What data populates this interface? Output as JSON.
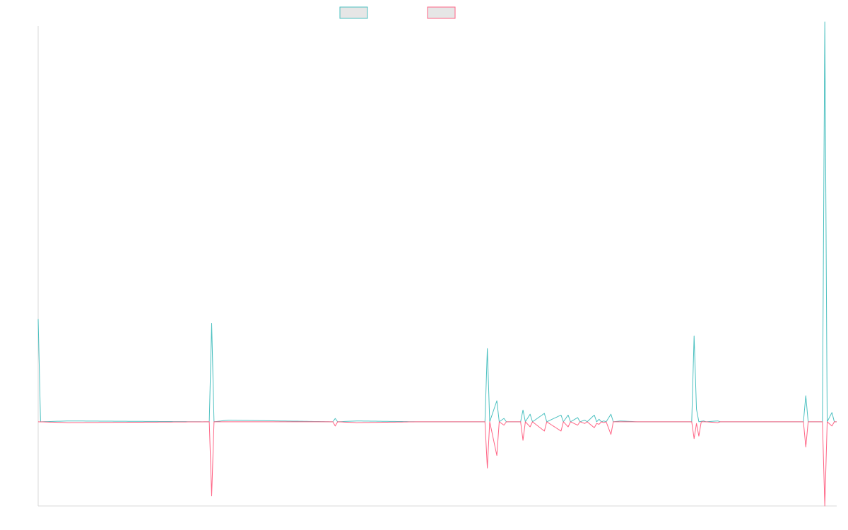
{
  "chart_data": {
    "type": "line",
    "title": "",
    "xlabel": "",
    "ylabel": "",
    "grid": false,
    "legend_position": "top-center",
    "baseline": 0,
    "ylim": [
      -100,
      470
    ],
    "x": [
      0,
      1,
      2,
      3,
      4,
      5,
      6,
      7,
      8,
      9,
      10,
      11,
      12,
      13,
      14,
      15,
      16,
      17,
      18,
      19,
      20,
      21,
      22,
      23,
      24,
      25,
      26,
      27,
      28,
      29,
      30,
      31,
      32,
      33,
      34,
      35,
      36,
      37,
      38,
      39,
      40,
      41,
      42,
      43,
      44,
      45,
      46,
      47,
      48,
      49,
      50,
      51,
      52,
      53,
      54,
      55,
      56,
      57,
      58,
      59,
      60,
      61,
      62,
      63,
      64,
      65,
      66,
      67,
      68,
      69,
      70,
      71,
      72,
      73,
      74,
      75,
      76,
      77,
      78,
      79,
      80,
      81,
      82,
      83,
      84,
      85,
      86,
      87,
      88,
      89,
      90,
      91,
      92,
      93,
      94,
      95,
      96,
      97,
      98,
      99,
      100,
      101,
      102,
      103,
      104,
      105,
      106,
      107,
      108,
      109,
      110,
      111,
      112,
      113,
      114,
      115,
      116,
      117,
      118,
      119,
      120,
      121,
      122,
      123,
      124,
      125,
      126,
      127,
      128,
      129,
      130,
      131,
      132,
      133,
      134,
      135,
      136,
      137,
      138,
      139,
      140,
      141,
      142,
      143,
      144,
      145,
      146,
      147,
      148,
      149,
      150,
      151,
      152,
      153,
      154,
      155,
      156,
      157,
      158,
      159,
      160,
      161,
      162,
      163,
      164,
      165,
      166,
      167,
      168,
      169,
      170,
      171,
      172,
      173,
      174,
      175,
      176,
      177,
      178,
      179,
      180,
      181,
      182,
      183,
      184,
      185,
      186,
      187,
      188,
      189,
      190,
      191,
      192,
      193,
      194,
      195,
      196,
      197,
      198,
      199,
      200,
      201,
      202,
      203,
      204,
      205,
      206,
      207,
      208,
      209,
      210,
      211,
      212,
      213,
      214,
      215,
      216,
      217,
      218,
      219,
      220,
      221,
      222,
      223,
      224,
      225,
      226,
      227,
      228,
      229,
      230,
      231,
      232,
      233,
      234,
      235,
      236,
      237,
      238,
      239,
      240,
      241,
      242,
      243,
      244,
      245,
      246,
      247,
      248,
      249,
      250,
      251,
      252,
      253,
      254,
      255,
      256,
      257,
      258,
      259,
      260,
      261,
      262,
      263,
      264,
      265,
      266,
      267,
      268,
      269,
      270,
      271,
      272,
      273,
      274,
      275,
      276,
      277,
      278,
      279,
      280,
      281,
      282,
      283,
      284,
      285,
      286,
      287,
      288,
      289,
      290,
      291,
      292,
      293,
      294,
      295,
      296,
      297,
      298,
      299,
      300,
      301,
      302,
      303,
      304,
      305,
      306,
      307,
      308,
      309,
      310,
      311,
      312,
      313,
      314,
      315,
      316,
      317,
      318,
      319,
      320,
      321,
      322,
      323,
      324,
      325,
      326,
      327,
      328,
      329,
      330,
      331,
      332,
      333,
      334,
      335,
      336
    ],
    "series": [
      {
        "name": "",
        "color": "#4bc0c0",
        "points": [
          [
            0,
            122
          ],
          [
            1,
            0
          ],
          [
            13,
            1
          ],
          [
            72,
            0
          ],
          [
            73,
            117
          ],
          [
            74,
            0
          ],
          [
            80,
            2
          ],
          [
            124,
            0
          ],
          [
            125,
            4
          ],
          [
            126,
            0
          ],
          [
            134,
            1
          ],
          [
            160,
            0
          ],
          [
            188,
            0
          ],
          [
            189,
            87
          ],
          [
            190,
            0
          ],
          [
            193,
            25
          ],
          [
            194,
            0
          ],
          [
            196,
            4
          ],
          [
            197,
            0
          ],
          [
            203,
            0
          ],
          [
            204,
            14
          ],
          [
            205,
            0
          ],
          [
            207,
            9
          ],
          [
            208,
            0
          ],
          [
            213,
            10
          ],
          [
            214,
            0
          ],
          [
            220,
            8
          ],
          [
            221,
            0
          ],
          [
            223,
            8
          ],
          [
            224,
            0
          ],
          [
            227,
            5
          ],
          [
            228,
            0
          ],
          [
            230,
            2
          ],
          [
            231,
            0
          ],
          [
            234,
            8
          ],
          [
            235,
            0
          ],
          [
            236,
            3
          ],
          [
            237,
            0
          ],
          [
            238,
            1
          ],
          [
            239,
            0
          ],
          [
            241,
            9
          ],
          [
            242,
            0
          ],
          [
            245,
            1
          ],
          [
            252,
            0
          ],
          [
            256,
            0
          ],
          [
            258,
            0
          ],
          [
            275,
            0
          ],
          [
            276,
            102
          ],
          [
            277,
            15
          ],
          [
            278,
            0
          ],
          [
            280,
            1
          ],
          [
            281,
            0
          ],
          [
            286,
            1
          ],
          [
            287,
            0
          ],
          [
            295,
            0
          ],
          [
            322,
            0
          ],
          [
            323,
            31
          ],
          [
            324,
            0
          ],
          [
            330,
            0
          ],
          [
            331,
            475
          ],
          [
            332,
            0
          ],
          [
            334,
            11
          ],
          [
            335,
            0
          ],
          [
            336,
            0
          ]
        ]
      },
      {
        "name": "",
        "color": "#ff6384",
        "points": [
          [
            0,
            0
          ],
          [
            13,
            -1
          ],
          [
            72,
            0
          ],
          [
            73,
            -88
          ],
          [
            74,
            0
          ],
          [
            124,
            0
          ],
          [
            125,
            -5
          ],
          [
            126,
            0
          ],
          [
            134,
            -1
          ],
          [
            160,
            0
          ],
          [
            188,
            0
          ],
          [
            189,
            -55
          ],
          [
            190,
            0
          ],
          [
            193,
            -40
          ],
          [
            194,
            0
          ],
          [
            196,
            -4
          ],
          [
            197,
            0
          ],
          [
            203,
            0
          ],
          [
            204,
            -22
          ],
          [
            205,
            0
          ],
          [
            207,
            -6
          ],
          [
            208,
            0
          ],
          [
            213,
            -11
          ],
          [
            214,
            0
          ],
          [
            220,
            -11
          ],
          [
            221,
            0
          ],
          [
            223,
            -6
          ],
          [
            224,
            0
          ],
          [
            227,
            -4
          ],
          [
            228,
            0
          ],
          [
            230,
            -2
          ],
          [
            231,
            0
          ],
          [
            234,
            -7
          ],
          [
            235,
            -2
          ],
          [
            236,
            -3
          ],
          [
            237,
            0
          ],
          [
            238,
            -1
          ],
          [
            239,
            0
          ],
          [
            241,
            -15
          ],
          [
            242,
            0
          ],
          [
            245,
            0
          ],
          [
            256,
            0
          ],
          [
            275,
            0
          ],
          [
            276,
            -20
          ],
          [
            277,
            -2
          ],
          [
            278,
            -17
          ],
          [
            279,
            0
          ],
          [
            281,
            0
          ],
          [
            286,
            -1
          ],
          [
            287,
            0
          ],
          [
            295,
            0
          ],
          [
            322,
            0
          ],
          [
            323,
            -30
          ],
          [
            324,
            0
          ],
          [
            330,
            0
          ],
          [
            331,
            -100
          ],
          [
            332,
            0
          ],
          [
            334,
            -5
          ],
          [
            335,
            0
          ],
          [
            336,
            0
          ]
        ]
      }
    ]
  }
}
